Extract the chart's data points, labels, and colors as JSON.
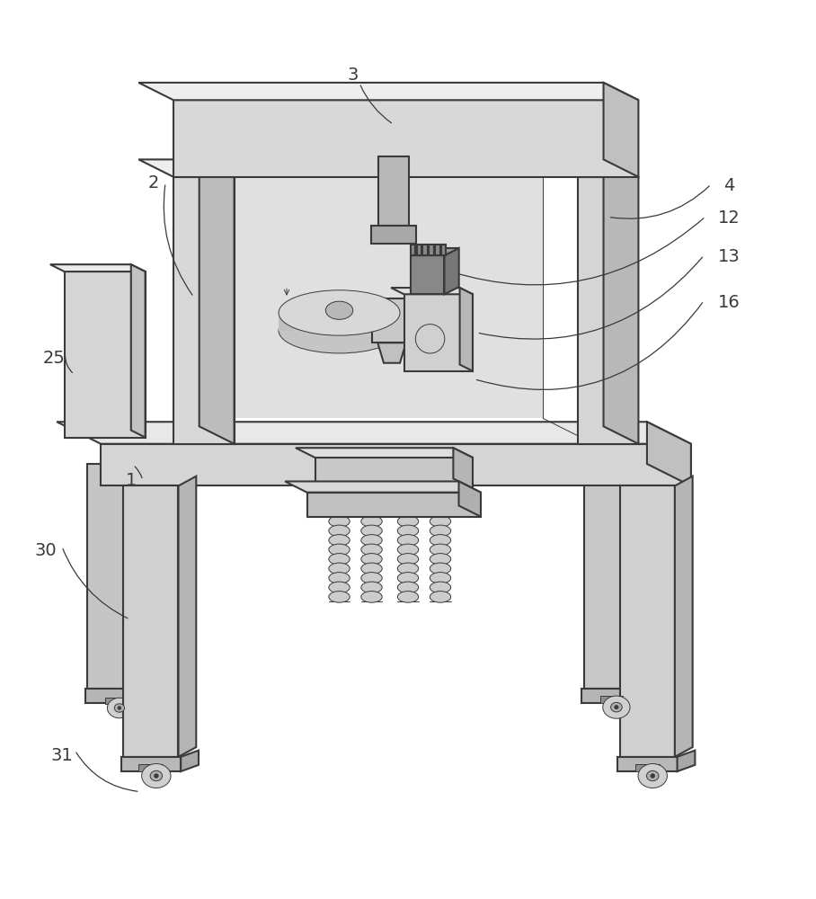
{
  "background_color": "#ffffff",
  "line_color": "#3a3a3a",
  "line_width": 1.5,
  "label_fontsize": 14,
  "figsize": [
    9.08,
    10.0
  ],
  "dpi": 100,
  "sx": 0.32,
  "sy": 0.16
}
